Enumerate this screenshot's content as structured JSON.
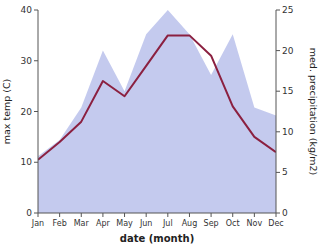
{
  "chart_data": {
    "type": "line",
    "xlabel": "date (month)",
    "ylabel": "max temp (C)",
    "y2label": "med. precipitation (kg/m2)",
    "categories": [
      "Jan",
      "Feb",
      "Mar",
      "Apr",
      "May",
      "Jun",
      "Jul",
      "Aug",
      "Sep",
      "Oct",
      "Nov",
      "Dec"
    ],
    "ylim": [
      0,
      40
    ],
    "yticks": [
      0,
      10,
      20,
      30,
      40
    ],
    "y2lim": [
      0,
      25
    ],
    "y2ticks": [
      0,
      5,
      10,
      15,
      20,
      25
    ],
    "grid": false,
    "series": [
      {
        "type": "area",
        "axis": "y2",
        "color": "#b0b8e8",
        "values": [
          7,
          9,
          13,
          20,
          15,
          22,
          25,
          22,
          17,
          22,
          13,
          12
        ]
      },
      {
        "type": "line",
        "color": "#8b2040",
        "values": [
          10.5,
          14,
          18,
          26,
          23,
          29,
          35,
          35,
          31,
          21,
          15,
          12
        ]
      }
    ]
  }
}
